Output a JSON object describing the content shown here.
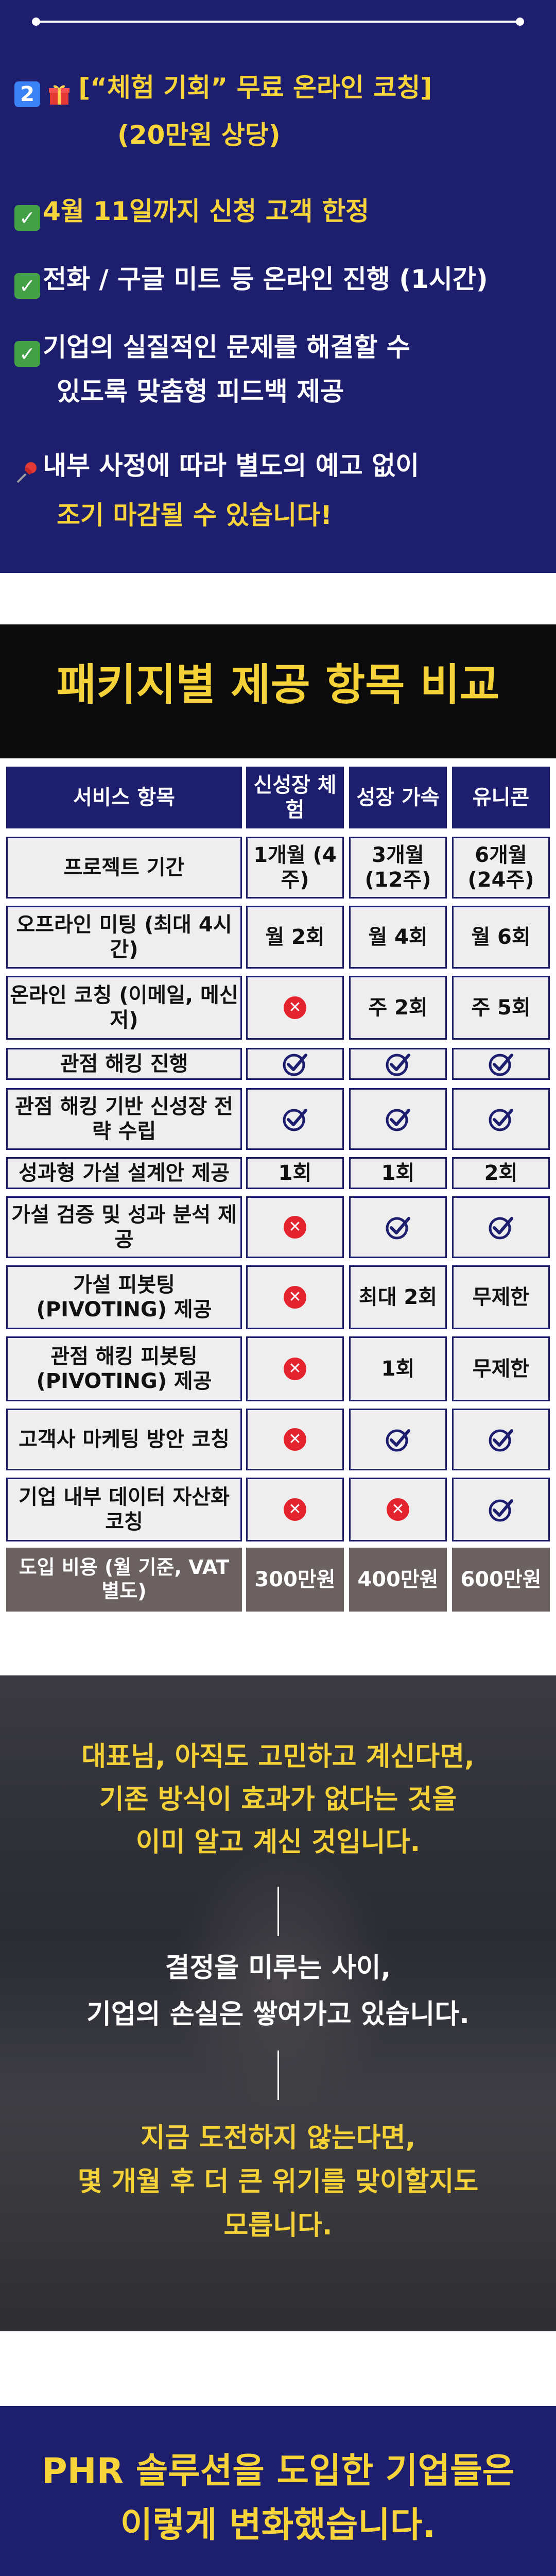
{
  "offer": {
    "number_badge": "2",
    "title_line1": "[“체험 기회” 무료 온라인 코칭]",
    "title_line2": "(20만원 상당)",
    "bullets": [
      "4월 11일까지 신청 고객 한정",
      "전화 / 구글 미트 등 온라인 진행 (1시간)",
      "기업의 실질적인 문제를 해결할 수",
      "있도록 맞춤형 피드백 제공"
    ],
    "notice_line1": "내부 사정에 따라 별도의 예고 없이",
    "notice_line2": "조기 마감될 수 있습니다!"
  },
  "compare": {
    "title": "패키지별 제공 항목 비교",
    "headers": [
      "서비스 항목",
      "신성장 체험",
      "성장 가속",
      "유니콘"
    ],
    "rows": [
      {
        "label": "프로젝트 기간",
        "values": [
          "1개월 (4주)",
          "3개월 (12주)",
          "6개월 (24주)"
        ]
      },
      {
        "label": "오프라인 미팅 (최대 4시간)",
        "values": [
          "월 2회",
          "월 4회",
          "월 6회"
        ]
      },
      {
        "label": "온라인 코칭 (이메일, 메신저)",
        "values": [
          "x",
          "주 2회",
          "주 5회"
        ]
      },
      {
        "label": "관점 해킹 진행",
        "values": [
          "check",
          "check",
          "check"
        ]
      },
      {
        "label": "관점 해킹 기반 신성장 전략 수립",
        "values": [
          "check",
          "check",
          "check"
        ]
      },
      {
        "label": "성과형 가설 설계안 제공",
        "values": [
          "1회",
          "1회",
          "2회"
        ]
      },
      {
        "label": "가설 검증 및 성과 분석 제공",
        "values": [
          "x",
          "check",
          "check"
        ]
      },
      {
        "label": "가설 피봇팅 (PIVOTING) 제공",
        "values": [
          "x",
          "최대 2회",
          "무제한"
        ]
      },
      {
        "label": "관점 해킹 피봇팅 (PIVOTING) 제공",
        "values": [
          "x",
          "1회",
          "무제한"
        ]
      },
      {
        "label": "고객사 마케팅 방안 코칭",
        "values": [
          "x",
          "check",
          "check"
        ]
      },
      {
        "label": "기업 내부 데이터 자산화 코칭",
        "values": [
          "x",
          "x",
          "check"
        ]
      }
    ],
    "cost": {
      "label": "도입 비용 (월 기준, VAT 별도)",
      "values": [
        "300만원",
        "400만원",
        "600만원"
      ]
    },
    "colors": {
      "navy": "#1d1f6e",
      "cell": "#eeeeef",
      "x": "#e3232d",
      "cost": "#6b6161"
    }
  },
  "ceo": {
    "block1": [
      "대표님, 아직도 고민하고 계신다면,",
      "기존 방식이 효과가 없다는 것을",
      "이미 알고 계신 것입니다."
    ],
    "block2": [
      "결정을 미루는 사이,",
      "기업의 손실은 쌓여가고 있습니다."
    ],
    "block3": [
      "지금 도전하지 않는다면,",
      "몇 개월 후 더 큰 위기를 맞이할지도",
      "모릅니다."
    ]
  },
  "results": {
    "line1": "PHR 솔루션을 도입한 기업들은",
    "line2": "이렇게 변화했습니다."
  }
}
